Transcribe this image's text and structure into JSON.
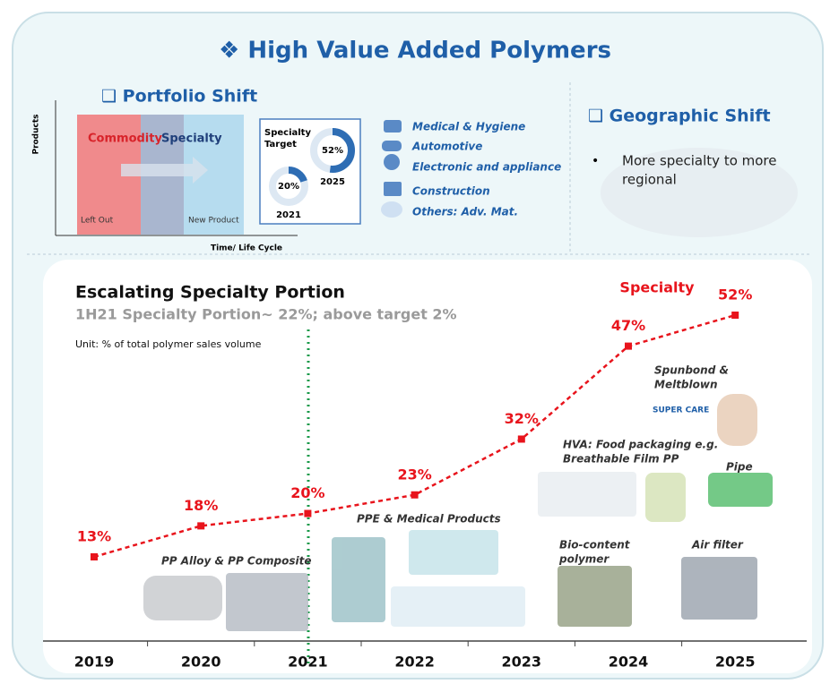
{
  "header": {
    "title": "❖ High Value Added Polymers"
  },
  "portfolio": {
    "title": "❑  Portfolio Shift",
    "y_axis": "Products",
    "x_axis": "Time/ Life Cycle",
    "commodity": "Commodity",
    "specialty": "Specialty",
    "left": "Left Out",
    "right": "New Product",
    "target": {
      "label": [
        "Specialty",
        "Target"
      ],
      "donuts": [
        {
          "value": 52,
          "label": "52%",
          "year": "2025"
        },
        {
          "value": 20,
          "label": "20%",
          "year": "2021"
        }
      ]
    },
    "applications": [
      "Medical & Hygiene",
      "Automotive",
      "Electronic and appliance",
      "Construction",
      "Others: Adv. Mat."
    ]
  },
  "geographic": {
    "title": "❑  Geographic Shift",
    "bullet": [
      "More specialty to more",
      "regional"
    ]
  },
  "chart_data": {
    "type": "line",
    "title": "Escalating Specialty Portion",
    "subtitle": "1H21 Specialty  Portion~ 22%; above target 2%",
    "note": "Unit: % of total polymer sales volume",
    "categories": [
      "2019",
      "2020",
      "2021",
      "2022",
      "2023",
      "2024",
      "2025"
    ],
    "series": [
      {
        "name": "Specialty",
        "color": "#e8141c",
        "values": [
          13,
          18,
          20,
          23,
          32,
          47,
          52
        ],
        "value_labels": [
          "13%",
          "18%",
          "20%",
          "23%",
          "32%",
          "47%",
          "52%"
        ]
      }
    ],
    "annotations": [
      [
        "PP Alloy & PP Composite"
      ],
      [
        "PPE & Medical Products"
      ],
      [
        "HVA: Food packaging e.g.",
        "Breathable Film PP"
      ],
      [
        "Pipe"
      ],
      [
        "Spunbond &",
        "Meltblown"
      ],
      [
        "SUPER CARE"
      ],
      [
        "Bio-content",
        "polymer"
      ],
      [
        "Air filter"
      ]
    ]
  }
}
